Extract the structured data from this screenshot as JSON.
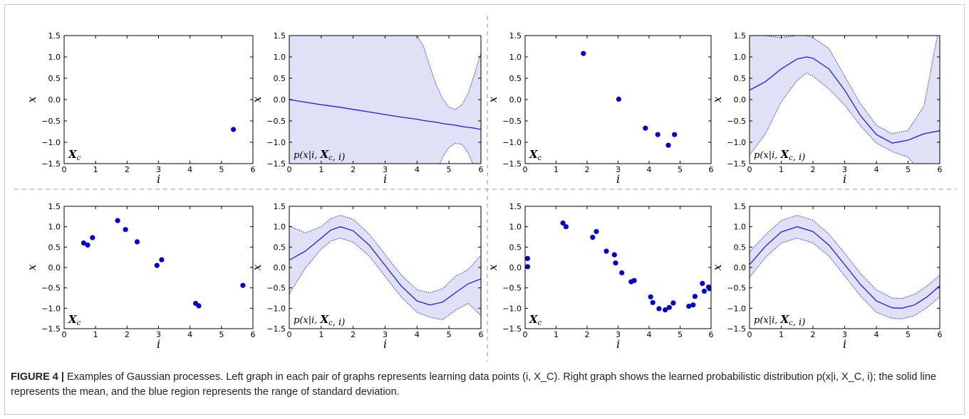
{
  "caption": {
    "label": "FIGURE 4 |",
    "text": " Examples of Gaussian processes. Left graph in each pair of graphs represents learning data points (i, X_C). Right graph shows the learned probabilistic distribution p(x|i, X_C, i); the solid line represents the mean, and the blue region represents the range of standard deviation."
  },
  "colors": {
    "points": "#0000cc",
    "mean": "#1f1fe0",
    "band": "#e0e0f7",
    "band_edge": "#2b2bd9"
  },
  "axis_text": {
    "xlabel": "i",
    "ylabel": "x",
    "data_label": "X_c",
    "dist_label": "p(x|i, X_c, i)"
  },
  "chart_data": [
    {
      "id": "tl-data",
      "type": "scatter",
      "xlim": [
        0,
        6
      ],
      "ylim": [
        -1.5,
        1.5
      ],
      "xticks": [
        "0",
        "1",
        "2",
        "3",
        "4",
        "5",
        "6"
      ],
      "yticks": [
        "1.5",
        "1.0",
        "0.5",
        "0.0",
        "−0.5",
        "−1.0",
        "−1.5"
      ],
      "xlabel": "i",
      "ylabel": "x",
      "annotation": "X_c",
      "points": [
        [
          5.38,
          -0.7
        ]
      ]
    },
    {
      "id": "tl-dist",
      "type": "area",
      "xlim": [
        0,
        6
      ],
      "ylim": [
        -1.5,
        1.5
      ],
      "xticks": [
        "0",
        "1",
        "2",
        "3",
        "4",
        "5",
        "6"
      ],
      "yticks": [
        "1.5",
        "1.0",
        "0.5",
        "0.0",
        "−0.5",
        "−1.0",
        "−1.5"
      ],
      "xlabel": "i",
      "ylabel": "x",
      "annotation": "p(x|i, X_c, i)",
      "x": [
        0,
        0.5,
        1,
        1.5,
        2,
        2.5,
        3,
        3.5,
        4,
        4.2,
        4.4,
        4.6,
        4.8,
        5.0,
        5.2,
        5.4,
        5.6,
        5.8,
        6.0
      ],
      "mean": [
        0.0,
        -0.06,
        -0.12,
        -0.17,
        -0.23,
        -0.29,
        -0.35,
        -0.41,
        -0.46,
        -0.49,
        -0.51,
        -0.53,
        -0.56,
        -0.58,
        -0.6,
        -0.63,
        -0.65,
        -0.67,
        -0.7
      ],
      "upper": [
        3,
        3,
        3,
        3,
        3,
        3,
        3,
        3,
        1.5,
        1.25,
        0.78,
        0.35,
        0.02,
        -0.18,
        -0.23,
        -0.12,
        0.15,
        0.6,
        1.1
      ],
      "lower": [
        -3,
        -3,
        -3,
        -3,
        -3,
        -3,
        -3,
        -3,
        -3,
        -3,
        -2.2,
        -1.7,
        -1.35,
        -1.12,
        -1.02,
        -1.05,
        -1.25,
        -1.6,
        -2.1
      ]
    },
    {
      "id": "tr-data",
      "type": "scatter",
      "xlim": [
        0,
        6
      ],
      "ylim": [
        -1.5,
        1.5
      ],
      "xticks": [
        "0",
        "1",
        "2",
        "3",
        "4",
        "5",
        "6"
      ],
      "yticks": [
        "1.5",
        "1.0",
        "0.5",
        "0.0",
        "−0.5",
        "−1.0",
        "−1.5"
      ],
      "xlabel": "i",
      "ylabel": "x",
      "annotation": "X_c",
      "points": [
        [
          1.88,
          1.08
        ],
        [
          3.02,
          0.01
        ],
        [
          3.88,
          -0.67
        ],
        [
          4.28,
          -0.82
        ],
        [
          4.62,
          -1.07
        ],
        [
          4.82,
          -0.82
        ]
      ]
    },
    {
      "id": "tr-dist",
      "type": "area",
      "xlim": [
        0,
        6
      ],
      "ylim": [
        -1.5,
        1.5
      ],
      "xticks": [
        "0",
        "1",
        "2",
        "3",
        "4",
        "5",
        "6"
      ],
      "yticks": [
        "1.5",
        "1.0",
        "0.5",
        "0.0",
        "−0.5",
        "−1.0",
        "−1.5"
      ],
      "xlabel": "i",
      "ylabel": "x",
      "annotation": "p(x|i, X_c, i)",
      "x": [
        0,
        0.5,
        1,
        1.5,
        1.8,
        2,
        2.5,
        3,
        3.5,
        4,
        4.5,
        5,
        5.5,
        6
      ],
      "mean": [
        0.22,
        0.42,
        0.72,
        0.95,
        1.0,
        0.97,
        0.72,
        0.22,
        -0.38,
        -0.82,
        -1.02,
        -0.95,
        -0.8,
        -0.73
      ],
      "upper": [
        1.5,
        1.5,
        1.45,
        1.5,
        1.5,
        1.45,
        1.2,
        0.55,
        -0.1,
        -0.6,
        -0.8,
        -0.72,
        -0.15,
        1.8
      ],
      "lower": [
        -1.3,
        -0.8,
        -0.05,
        0.45,
        0.62,
        0.55,
        0.25,
        -0.13,
        -0.62,
        -1.02,
        -1.22,
        -1.35,
        -1.8,
        -3.0
      ]
    },
    {
      "id": "bl-data",
      "type": "scatter",
      "xlim": [
        0,
        6
      ],
      "ylim": [
        -1.5,
        1.5
      ],
      "xticks": [
        "0",
        "1",
        "2",
        "3",
        "4",
        "5",
        "6"
      ],
      "yticks": [
        "1.5",
        "1.0",
        "0.5",
        "0.0",
        "−0.5",
        "−1.0",
        "−1.5"
      ],
      "xlabel": "i",
      "ylabel": "x",
      "annotation": "X_c",
      "points": [
        [
          0.62,
          0.6
        ],
        [
          0.75,
          0.55
        ],
        [
          0.9,
          0.73
        ],
        [
          1.7,
          1.15
        ],
        [
          1.95,
          0.93
        ],
        [
          2.32,
          0.63
        ],
        [
          2.95,
          0.05
        ],
        [
          3.1,
          0.19
        ],
        [
          4.18,
          -0.88
        ],
        [
          4.28,
          -0.94
        ],
        [
          5.68,
          -0.44
        ]
      ]
    },
    {
      "id": "bl-dist",
      "type": "area",
      "xlim": [
        0,
        6
      ],
      "ylim": [
        -1.5,
        1.5
      ],
      "xticks": [
        "0",
        "1",
        "2",
        "3",
        "4",
        "5",
        "6"
      ],
      "yticks": [
        "1.5",
        "1.0",
        "0.5",
        "0.0",
        "−0.5",
        "−1.0",
        "−1.5"
      ],
      "xlabel": "i",
      "ylabel": "x",
      "annotation": "p(x|i, X_c, i)",
      "x": [
        0,
        0.5,
        1,
        1.3,
        1.6,
        2,
        2.5,
        3,
        3.5,
        4,
        4.4,
        4.8,
        5.2,
        5.6,
        6
      ],
      "mean": [
        0.18,
        0.4,
        0.72,
        0.92,
        1.0,
        0.9,
        0.55,
        0.05,
        -0.45,
        -0.82,
        -0.92,
        -0.85,
        -0.62,
        -0.4,
        -0.28
      ],
      "upper": [
        1.02,
        0.85,
        1.0,
        1.2,
        1.28,
        1.18,
        0.82,
        0.32,
        -0.18,
        -0.55,
        -0.62,
        -0.52,
        -0.22,
        -0.05,
        0.3
      ],
      "lower": [
        -0.65,
        -0.02,
        0.45,
        0.65,
        0.72,
        0.62,
        0.28,
        -0.22,
        -0.72,
        -1.1,
        -1.22,
        -1.28,
        -1.05,
        -0.88,
        -1.18
      ]
    },
    {
      "id": "br-data",
      "type": "scatter",
      "xlim": [
        0,
        6
      ],
      "ylim": [
        -1.5,
        1.5
      ],
      "xticks": [
        "0",
        "1",
        "2",
        "3",
        "4",
        "5",
        "6"
      ],
      "yticks": [
        "1.5",
        "1.0",
        "0.5",
        "0.0",
        "−0.5",
        "−1.0",
        "−1.5"
      ],
      "xlabel": "i",
      "ylabel": "x",
      "annotation": "X_c",
      "points": [
        [
          0.08,
          0.22
        ],
        [
          0.08,
          0.02
        ],
        [
          1.22,
          1.09
        ],
        [
          1.32,
          1.0
        ],
        [
          2.18,
          0.74
        ],
        [
          2.3,
          0.88
        ],
        [
          2.62,
          0.4
        ],
        [
          2.88,
          0.31
        ],
        [
          2.92,
          0.11
        ],
        [
          3.12,
          -0.13
        ],
        [
          3.42,
          -0.35
        ],
        [
          3.52,
          -0.32
        ],
        [
          4.05,
          -0.72
        ],
        [
          4.12,
          -0.86
        ],
        [
          4.32,
          -1.01
        ],
        [
          4.52,
          -1.04
        ],
        [
          4.65,
          -0.98
        ],
        [
          4.78,
          -0.87
        ],
        [
          5.28,
          -0.95
        ],
        [
          5.42,
          -0.92
        ],
        [
          5.48,
          -0.71
        ],
        [
          5.72,
          -0.39
        ],
        [
          5.78,
          -0.58
        ],
        [
          5.92,
          -0.48
        ],
        [
          5.95,
          -0.52
        ]
      ]
    },
    {
      "id": "br-dist",
      "type": "area",
      "xlim": [
        0,
        6
      ],
      "ylim": [
        -1.5,
        1.5
      ],
      "xticks": [
        "0",
        "1",
        "2",
        "3",
        "4",
        "5",
        "6"
      ],
      "yticks": [
        "1.5",
        "1.0",
        "0.5",
        "0.0",
        "−0.5",
        "−1.0",
        "−1.5"
      ],
      "xlabel": "i",
      "ylabel": "x",
      "annotation": "p(x|i, X_c, i)",
      "x": [
        0,
        0.5,
        1,
        1.5,
        2,
        2.5,
        3,
        3.5,
        4,
        4.5,
        4.8,
        5.2,
        5.6,
        6
      ],
      "mean": [
        0.07,
        0.52,
        0.87,
        1.0,
        0.88,
        0.55,
        0.07,
        -0.42,
        -0.82,
        -0.99,
        -1.0,
        -0.92,
        -0.72,
        -0.45
      ],
      "upper": [
        0.38,
        0.8,
        1.15,
        1.28,
        1.16,
        0.82,
        0.35,
        -0.15,
        -0.55,
        -0.75,
        -0.76,
        -0.66,
        -0.45,
        -0.19
      ],
      "lower": [
        -0.24,
        0.24,
        0.6,
        0.72,
        0.6,
        0.28,
        -0.21,
        -0.7,
        -1.1,
        -1.25,
        -1.26,
        -1.18,
        -0.98,
        -0.72
      ]
    }
  ]
}
